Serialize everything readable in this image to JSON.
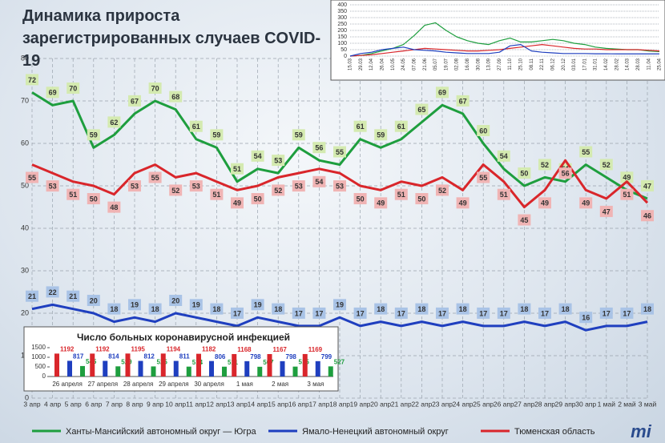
{
  "title": "Динамика прироста зарегистрированных случаев COVID-19",
  "logo": "mi",
  "chart_data": [
    {
      "type": "line",
      "categories": [
        "3 апр",
        "4 апр",
        "5 апр",
        "6 апр",
        "7 апр",
        "8 апр",
        "9 апр",
        "10 апр",
        "11 апр",
        "12 апр",
        "13 апр",
        "14 апр",
        "15 апр",
        "16 апр",
        "17 апр",
        "18 апр",
        "19 апр",
        "20 апр",
        "21 апр",
        "22 апр",
        "23 апр",
        "24 апр",
        "25 апр",
        "26 апр",
        "27 апр",
        "28 апр",
        "29 апр",
        "30 апр",
        "1 май",
        "2 май",
        "3 май"
      ],
      "series": [
        {
          "name": "Ханты-Мансийский автономный округ — Югра",
          "color": "#1e9e3e",
          "values": [
            72,
            69,
            70,
            59,
            62,
            67,
            70,
            68,
            61,
            59,
            51,
            54,
            53,
            59,
            56,
            55,
            61,
            59,
            61,
            65,
            69,
            67,
            60,
            54,
            50,
            52,
            51,
            55,
            52,
            49,
            47
          ]
        },
        {
          "name": "Ямало-Ненецкий автономный округ",
          "color": "#1f3fbf",
          "values": [
            21,
            22,
            21,
            20,
            18,
            19,
            18,
            20,
            19,
            18,
            17,
            19,
            18,
            17,
            17,
            19,
            17,
            18,
            17,
            18,
            17,
            18,
            17,
            17,
            18,
            17,
            18,
            16,
            17,
            17,
            18
          ]
        },
        {
          "name": "Тюменская область",
          "color": "#d9262b",
          "values": [
            55,
            53,
            51,
            50,
            48,
            53,
            55,
            52,
            53,
            51,
            49,
            50,
            52,
            53,
            54,
            53,
            50,
            49,
            51,
            50,
            52,
            49,
            55,
            51,
            45,
            49,
            56,
            49,
            47,
            51,
            46
          ]
        }
      ],
      "ylim": [
        0,
        80
      ],
      "yticks": [
        0,
        10,
        20,
        30,
        40,
        50,
        60,
        70,
        80
      ],
      "grid": true,
      "value_labels_shown": true
    },
    {
      "type": "line",
      "categories": [
        "15.03",
        "29.03",
        "12.04",
        "26.04",
        "10.05",
        "24.05",
        "07.06",
        "21.06",
        "05.07",
        "19.07",
        "02.08",
        "16.08",
        "30.08",
        "13.09",
        "27.09",
        "11.10",
        "25.10",
        "08.11",
        "22.11",
        "06.12",
        "20.12",
        "03.01",
        "17.01",
        "31.01",
        "14.02",
        "28.02",
        "14.03",
        "28.03",
        "11.04",
        "25.04"
      ],
      "series": [
        {
          "color": "#1e9e3e",
          "values": [
            0,
            5,
            20,
            40,
            60,
            90,
            160,
            240,
            260,
            200,
            150,
            120,
            100,
            90,
            120,
            140,
            110,
            110,
            120,
            130,
            120,
            100,
            90,
            70,
            60,
            55,
            50,
            50,
            40,
            35
          ]
        },
        {
          "color": "#d9262b",
          "values": [
            0,
            5,
            10,
            20,
            30,
            40,
            50,
            60,
            55,
            50,
            45,
            40,
            40,
            45,
            50,
            60,
            70,
            80,
            90,
            80,
            70,
            60,
            55,
            55,
            50,
            50,
            50,
            50,
            45,
            40
          ]
        },
        {
          "color": "#1f3fbf",
          "values": [
            0,
            20,
            30,
            50,
            60,
            70,
            50,
            45,
            40,
            30,
            25,
            20,
            20,
            20,
            30,
            80,
            90,
            40,
            30,
            25,
            20,
            20,
            20,
            18,
            18,
            17,
            17,
            17,
            17,
            17
          ]
        }
      ],
      "ylim": [
        0,
        400
      ],
      "yticks": [
        0,
        50,
        100,
        150,
        200,
        250,
        300,
        350,
        400
      ],
      "grid": true,
      "value_labels_shown": false
    },
    {
      "type": "bar",
      "title": "Число больных коронавирусной инфекцией",
      "categories": [
        "26 апреля",
        "27 апреля",
        "28 апреля",
        "29 апреля",
        "30 апреля",
        "1 мая",
        "2 мая",
        "3 мая"
      ],
      "series": [
        {
          "color": "#d9262b",
          "values": [
            1192,
            1192,
            1195,
            1194,
            1182,
            1168,
            1167,
            1169
          ]
        },
        {
          "color": "#1f3fbf",
          "values": [
            817,
            814,
            812,
            811,
            806,
            798,
            798,
            799
          ]
        },
        {
          "color": "#1e9e3e",
          "values": [
            545,
            529,
            525,
            514,
            511,
            507,
            515,
            527
          ]
        }
      ],
      "ylim": [
        0,
        1500
      ],
      "yticks": [
        0,
        500,
        1000,
        1500
      ]
    }
  ]
}
